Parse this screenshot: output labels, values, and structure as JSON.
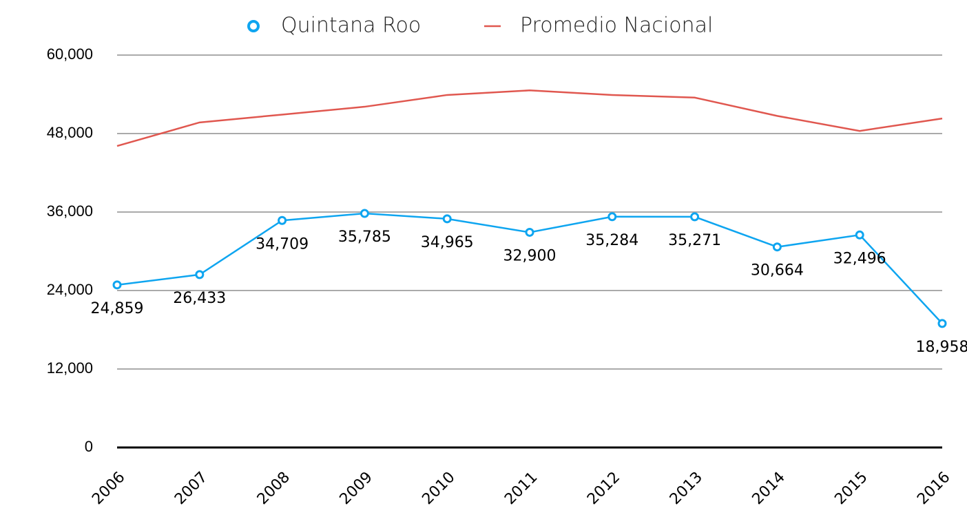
{
  "chart_data": {
    "type": "line",
    "categories": [
      "2006",
      "2007",
      "2008",
      "2009",
      "2010",
      "2011",
      "2012",
      "2013",
      "2014",
      "2015",
      "2016"
    ],
    "series": [
      {
        "name": "Quintana Roo",
        "color": "#0ea5f0",
        "values": [
          24859,
          26433,
          34709,
          35785,
          34965,
          32900,
          35284,
          35271,
          30664,
          32496,
          18958
        ],
        "value_labels": [
          "24,859",
          "26,433",
          "34,709",
          "35,785",
          "34,965",
          "32,900",
          "35,284",
          "35,271",
          "30,664",
          "32,496",
          "18,958"
        ],
        "markers": true
      },
      {
        "name": "Promedio Nacional",
        "color": "#e0574f",
        "values": [
          46100,
          49700,
          50900,
          52100,
          53900,
          54600,
          53900,
          53500,
          50700,
          48400,
          50300
        ],
        "markers": false
      }
    ],
    "ylim": [
      0,
      60000
    ],
    "yticks": [
      0,
      {
        "value": 12000,
        "label": "12,000"
      },
      {
        "value": 24000,
        "label": "24,000"
      },
      {
        "value": 36000,
        "label": "36,000"
      },
      {
        "value": 48000,
        "label": "48,000"
      },
      {
        "value": 60000,
        "label": "60,000"
      }
    ],
    "grid": true,
    "legend": "top"
  }
}
